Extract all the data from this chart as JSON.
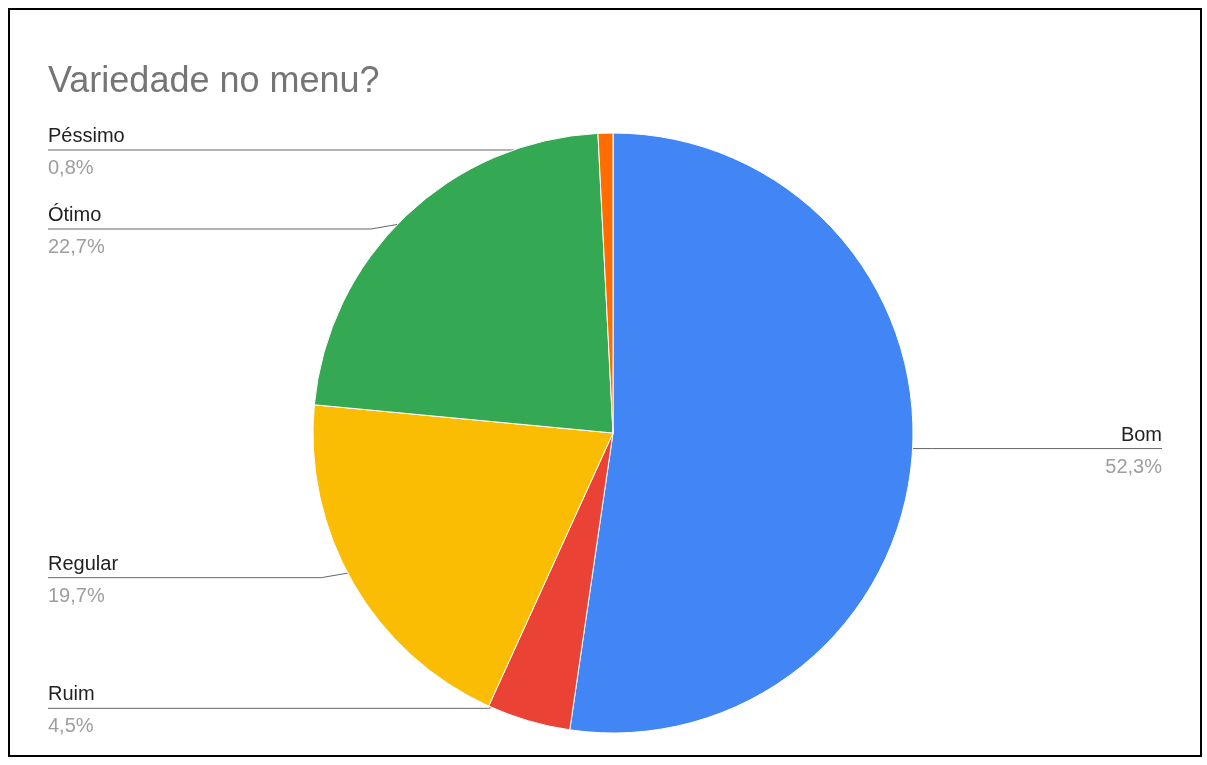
{
  "chart_data": {
    "type": "pie",
    "title": "Variedade no menu?",
    "categories": [
      "Bom",
      "Ruim",
      "Regular",
      "Ótimo",
      "Péssimo"
    ],
    "values": [
      52.3,
      4.5,
      19.7,
      22.7,
      0.8
    ],
    "value_labels": [
      "52,3%",
      "4,5%",
      "19,7%",
      "22,7%",
      "0,8%"
    ],
    "colors": [
      "#4285f4",
      "#ea4335",
      "#fbbc04",
      "#34a853",
      "#ff6d01"
    ],
    "legend": false
  }
}
